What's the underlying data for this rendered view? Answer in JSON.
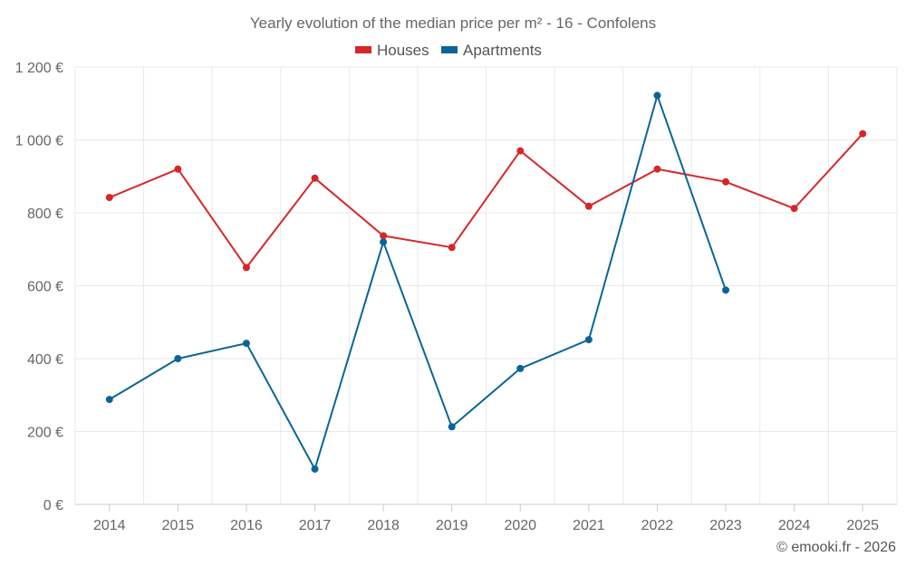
{
  "chart_data": {
    "type": "line",
    "title": "Yearly evolution of the median price per m² - 16 - Confolens",
    "categories": [
      "2014",
      "2015",
      "2016",
      "2017",
      "2018",
      "2019",
      "2020",
      "2021",
      "2022",
      "2023",
      "2024",
      "2025"
    ],
    "series": [
      {
        "name": "Houses",
        "color": "#d62728",
        "values": [
          842,
          920,
          650,
          895,
          737,
          705,
          970,
          818,
          920,
          885,
          812,
          1017
        ]
      },
      {
        "name": "Apartments",
        "color": "#0a6597",
        "values": [
          288,
          400,
          442,
          97,
          720,
          213,
          373,
          452,
          1122,
          588,
          null,
          null
        ]
      }
    ],
    "y_ticks": [
      0,
      200,
      400,
      600,
      800,
      1000,
      1200
    ],
    "y_tick_labels": [
      "0 €",
      "200 €",
      "400 €",
      "600 €",
      "800 €",
      "1 000 €",
      "1 200 €"
    ],
    "ylim": [
      0,
      1200
    ],
    "xlabel": "",
    "ylabel": "",
    "grid": true,
    "legend_position": "top-center"
  },
  "credit": "© emooki.fr - 2026"
}
